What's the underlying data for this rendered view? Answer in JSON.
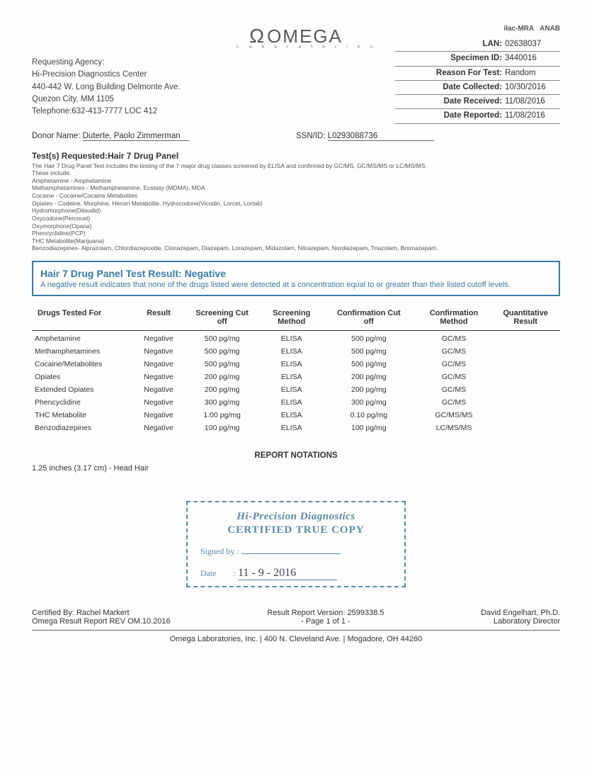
{
  "logo": {
    "brand": "OMEGA",
    "sub": "L a b o r a t o r i e s"
  },
  "accred": {
    "left": "ilac-MRA",
    "right": "ANAB"
  },
  "agency": {
    "label": "Requesting Agency:",
    "name": "Hi-Precision Diagnostics Center",
    "addr1": "440-442 W. Long Building Delmonte Ave.",
    "addr2": "Quezon City, MM 1105",
    "phone": "Telephone:632-413-7777 LOC 412"
  },
  "meta": [
    {
      "label": "LAN:",
      "value": "02638037"
    },
    {
      "label": "Specimen ID:",
      "value": "3440016"
    },
    {
      "label": "Reason For Test:",
      "value": "Random"
    },
    {
      "label": "Date Collected:",
      "value": "10/30/2016"
    },
    {
      "label": "Date Received:",
      "value": "11/08/2016"
    },
    {
      "label": "Date Reported:",
      "value": "11/08/2016"
    }
  ],
  "donor": {
    "name_label": "Donor Name:",
    "name_value": "Duterte, Paolo Zimmerman",
    "ssn_label": "SSN/ID:",
    "ssn_value": "L0293088736"
  },
  "tests": {
    "heading": "Test(s) Requested:Hair 7 Drug Panel",
    "intro": "The Hair 7 Drug Panel Test includes the testing of the 7 major drug classes screened by ELISA and confirmed by GC/MS, GC/MS/MS or LC/MS/MS.",
    "include_label": "These include:",
    "lines": [
      "Amphetamine - Amphetamine",
      "Methamphetamines - Methamphetamine, Ecstasy (MDMA), MDA",
      "Cocaine - Cocaine/Cocaine Metabolites",
      "Opiates - Codeine, Morphine, Heroin Metabolite, Hydrocodone(Vicodin, Lorcet, Lortab)",
      "Hydromorphone(Dilaudid)",
      "Oxycodone(Percocet)",
      "Oxymorphone(Opana)",
      "Phencyclidine(PCP)",
      "THC Metabolite(Marijuana)",
      "Benzodiazepines- Alprazolam, Chlordiazepoxide, Clonazepam, Diazepam, Lorazepam, Midazolam, Nitrazepam, Nordiazepam, Triazolam, Bromazepam."
    ]
  },
  "result_box": {
    "title": "Hair 7 Drug Panel Test Result: Negative",
    "desc": "A negative result indicates that none of the drugs listed were detected at a concentration equal to or greater than their listed cutoff levels."
  },
  "table": {
    "columns": [
      "Drugs Tested For",
      "Result",
      "Screening Cut off",
      "Screening Method",
      "Confirmation Cut off",
      "Confirmation Method",
      "Quantitative Result"
    ],
    "rows": [
      [
        "Amphetamine",
        "Negative",
        "500 pg/mg",
        "ELISA",
        "500 pg/mg",
        "GC/MS",
        ""
      ],
      [
        "Methamphetamines",
        "Negative",
        "500 pg/mg",
        "ELISA",
        "500 pg/mg",
        "GC/MS",
        ""
      ],
      [
        "Cocaine/Metabolites",
        "Negative",
        "500 pg/mg",
        "ELISA",
        "500 pg/mg",
        "GC/MS",
        ""
      ],
      [
        "Opiates",
        "Negative",
        "200 pg/mg",
        "ELISA",
        "200 pg/mg",
        "GC/MS",
        ""
      ],
      [
        "Extended Opiates",
        "Negative",
        "200 pg/mg",
        "ELISA",
        "200 pg/mg",
        "GC/MS",
        ""
      ],
      [
        "Phencyclidine",
        "Negative",
        "300 pg/mg",
        "ELISA",
        "300 pg/mg",
        "GC/MS",
        ""
      ],
      [
        "THC Metabolite",
        "Negative",
        "1.00 pg/mg",
        "ELISA",
        "0.10 pg/mg",
        "GC/MS/MS",
        ""
      ],
      [
        "Benzodiazepines",
        "Negative",
        "100 pg/mg",
        "ELISA",
        "100 pg/mg",
        "LC/MS/MS",
        ""
      ]
    ]
  },
  "notations": {
    "title": "REPORT NOTATIONS",
    "text": "1.25 inches (3.17 cm) - Head Hair"
  },
  "stamp": {
    "title": "Hi-Precision Diagnostics",
    "cert": "CERTIFIED TRUE COPY",
    "signed_label": "Signed by :",
    "signed_value": " ",
    "date_label": "Date",
    "date_value": "11 - 9 - 2016"
  },
  "footer": {
    "left1": "Certified By: Rachel Markert",
    "left2": "Omega Result Report REV OM.10.2016",
    "center1": "Result Report Version: 2599338.5",
    "center2": "- Page 1 of 1 -",
    "right1": "David Engelhart, Ph.D.",
    "right2": "Laboratory Director",
    "addr": "Omega Laboratories, Inc. | 400 N. Cleveland Ave. | Mogadore, OH 44260"
  },
  "colors": {
    "accent": "#3a7ca8",
    "text": "#333333",
    "stamp": "#5a8aaa"
  }
}
